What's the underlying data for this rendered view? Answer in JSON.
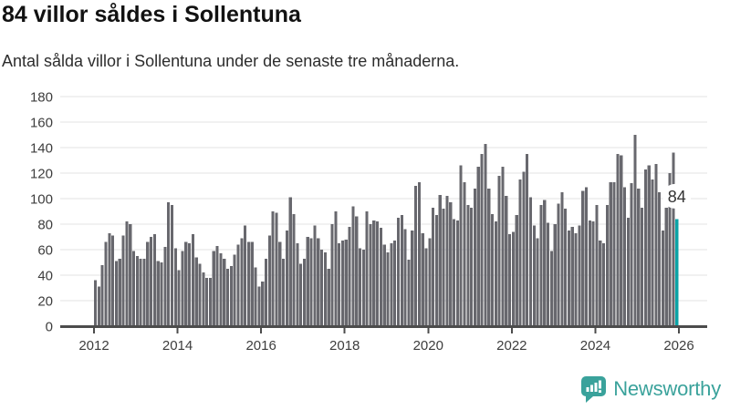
{
  "chart_data": {
    "type": "bar",
    "title": "84 villor såldes i Sollentuna",
    "subtitle": "Antal sålda villor i Sollentuna under de senaste tre månaderna.",
    "frequency": "monthly",
    "x_start": "2012-01",
    "x_end": "2025-12",
    "xlabel": "",
    "ylabel": "",
    "ylim": [
      0,
      180
    ],
    "grid": true,
    "yticks": [
      0,
      20,
      40,
      60,
      80,
      100,
      120,
      140,
      160,
      180
    ],
    "xticks": [
      "2012",
      "2014",
      "2016",
      "2018",
      "2020",
      "2022",
      "2024",
      "2026"
    ],
    "years": [
      {
        "year": 2012,
        "values": [
          36,
          31,
          48,
          66,
          73,
          71,
          51,
          53,
          71,
          82,
          80,
          59
        ]
      },
      {
        "year": 2013,
        "values": [
          55,
          53,
          53,
          66,
          70,
          72,
          51,
          50,
          62,
          97,
          95,
          61
        ]
      },
      {
        "year": 2014,
        "values": [
          44,
          59,
          66,
          65,
          72,
          54,
          49,
          42,
          38,
          38,
          59,
          63
        ]
      },
      {
        "year": 2015,
        "values": [
          57,
          53,
          45,
          47,
          56,
          64,
          69,
          79,
          66,
          66,
          46,
          31
        ]
      },
      {
        "year": 2016,
        "values": [
          35,
          53,
          71,
          90,
          89,
          66,
          53,
          75,
          101,
          88,
          65,
          49
        ]
      },
      {
        "year": 2017,
        "values": [
          53,
          70,
          69,
          79,
          69,
          60,
          58,
          45,
          80,
          90,
          65,
          67
        ]
      },
      {
        "year": 2018,
        "values": [
          68,
          78,
          94,
          86,
          61,
          60,
          90,
          80,
          83,
          82,
          77,
          64
        ]
      },
      {
        "year": 2019,
        "values": [
          58,
          65,
          67,
          85,
          87,
          76,
          52,
          75,
          110,
          113,
          73,
          61
        ]
      },
      {
        "year": 2020,
        "values": [
          69,
          93,
          87,
          103,
          92,
          102,
          97,
          84,
          83,
          126,
          113,
          95
        ]
      },
      {
        "year": 2021,
        "values": [
          93,
          108,
          125,
          135,
          143,
          108,
          88,
          82,
          118,
          125,
          102,
          72
        ]
      },
      {
        "year": 2022,
        "values": [
          74,
          87,
          115,
          121,
          135,
          101,
          79,
          69,
          95,
          99,
          81,
          59
        ]
      },
      {
        "year": 2023,
        "values": [
          80,
          96,
          105,
          92,
          75,
          78,
          73,
          79,
          106,
          109,
          83,
          82
        ]
      },
      {
        "year": 2024,
        "values": [
          95,
          67,
          65,
          95,
          113,
          113,
          135,
          134,
          109,
          85,
          112,
          150
        ]
      },
      {
        "year": 2025,
        "values": [
          108,
          93,
          123,
          126,
          115,
          127,
          105,
          75,
          93,
          120,
          136,
          84
        ]
      }
    ],
    "annotation": {
      "text": "84",
      "attached_to": "last-bar"
    },
    "colors": {
      "bar": "#68686e",
      "highlight_bar": "#0ba3a6",
      "grid": "#e3e3e3",
      "axis": "#4c4c4c",
      "tick_label": "#3d3d3d",
      "callout_text": "#333333",
      "callout_bg": "#ffffff"
    }
  },
  "branding": {
    "wordmark": "Newsworthy",
    "color": "#3aa29b",
    "icon": "newsworthy-speech-bubble-chart-icon"
  }
}
